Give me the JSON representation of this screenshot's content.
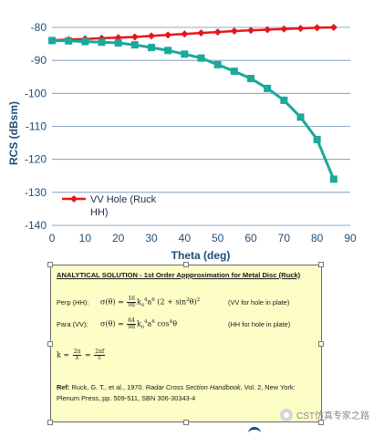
{
  "chart_data": {
    "type": "line",
    "xlabel": "Theta (deg)",
    "ylabel": "RCS (dBsm)",
    "xlim": [
      0,
      90
    ],
    "ylim": [
      -140,
      -80
    ],
    "xticks": [
      0,
      10,
      20,
      30,
      40,
      50,
      60,
      70,
      80,
      90
    ],
    "yticks": [
      -80,
      -90,
      -100,
      -110,
      -120,
      -130,
      -140
    ],
    "grid": "horizontal",
    "legend": "bottom-left",
    "series": [
      {
        "name": "VV Hole (Ruck HH)",
        "legend_lines": [
          "VV Hole (Ruck",
          "HH)"
        ],
        "color": "#e8151b",
        "marker": "diamond",
        "x": [
          0,
          5,
          10,
          15,
          20,
          25,
          30,
          35,
          40,
          45,
          50,
          55,
          60,
          65,
          70,
          75,
          80,
          85
        ],
        "values": [
          -83.9,
          -83.7,
          -83.5,
          -83.3,
          -83.1,
          -82.9,
          -82.6,
          -82.3,
          -82.0,
          -81.7,
          -81.4,
          -81.1,
          -80.9,
          -80.7,
          -80.5,
          -80.3,
          -80.1,
          -80.0
        ]
      },
      {
        "name": "",
        "color": "#1aa99a",
        "marker": "square",
        "x": [
          0,
          5,
          10,
          15,
          20,
          25,
          30,
          35,
          40,
          45,
          50,
          55,
          60,
          65,
          70,
          75,
          80,
          85
        ],
        "values": [
          -84.0,
          -84.1,
          -84.3,
          -84.5,
          -84.7,
          -85.3,
          -86.1,
          -87.0,
          -88.1,
          -89.3,
          -91.3,
          -93.3,
          -95.5,
          -98.5,
          -102.1,
          -107.2,
          -114.0,
          -126.0
        ]
      }
    ]
  },
  "note": {
    "title": "ANALYTICAL SOLUTION - 1st Order Appproximation for Metal Disc (Ruck)",
    "perp_label": "Perp (HH):",
    "perp_comment": "(VV for hole in plate)",
    "para_label": "Para (VV):",
    "para_comment": "(HH for hole in plate)",
    "ref_label": "Ref:",
    "ref_author": "Ruck, G. T., et al., 1970.",
    "ref_book": "Radar Cross Section Handbook",
    "ref_rest": ", Vol. 2, New York: Plenum Press, pp. 509-511, SBN 306-30343-4"
  },
  "watermark": {
    "text": "CST仿真专家之路"
  }
}
